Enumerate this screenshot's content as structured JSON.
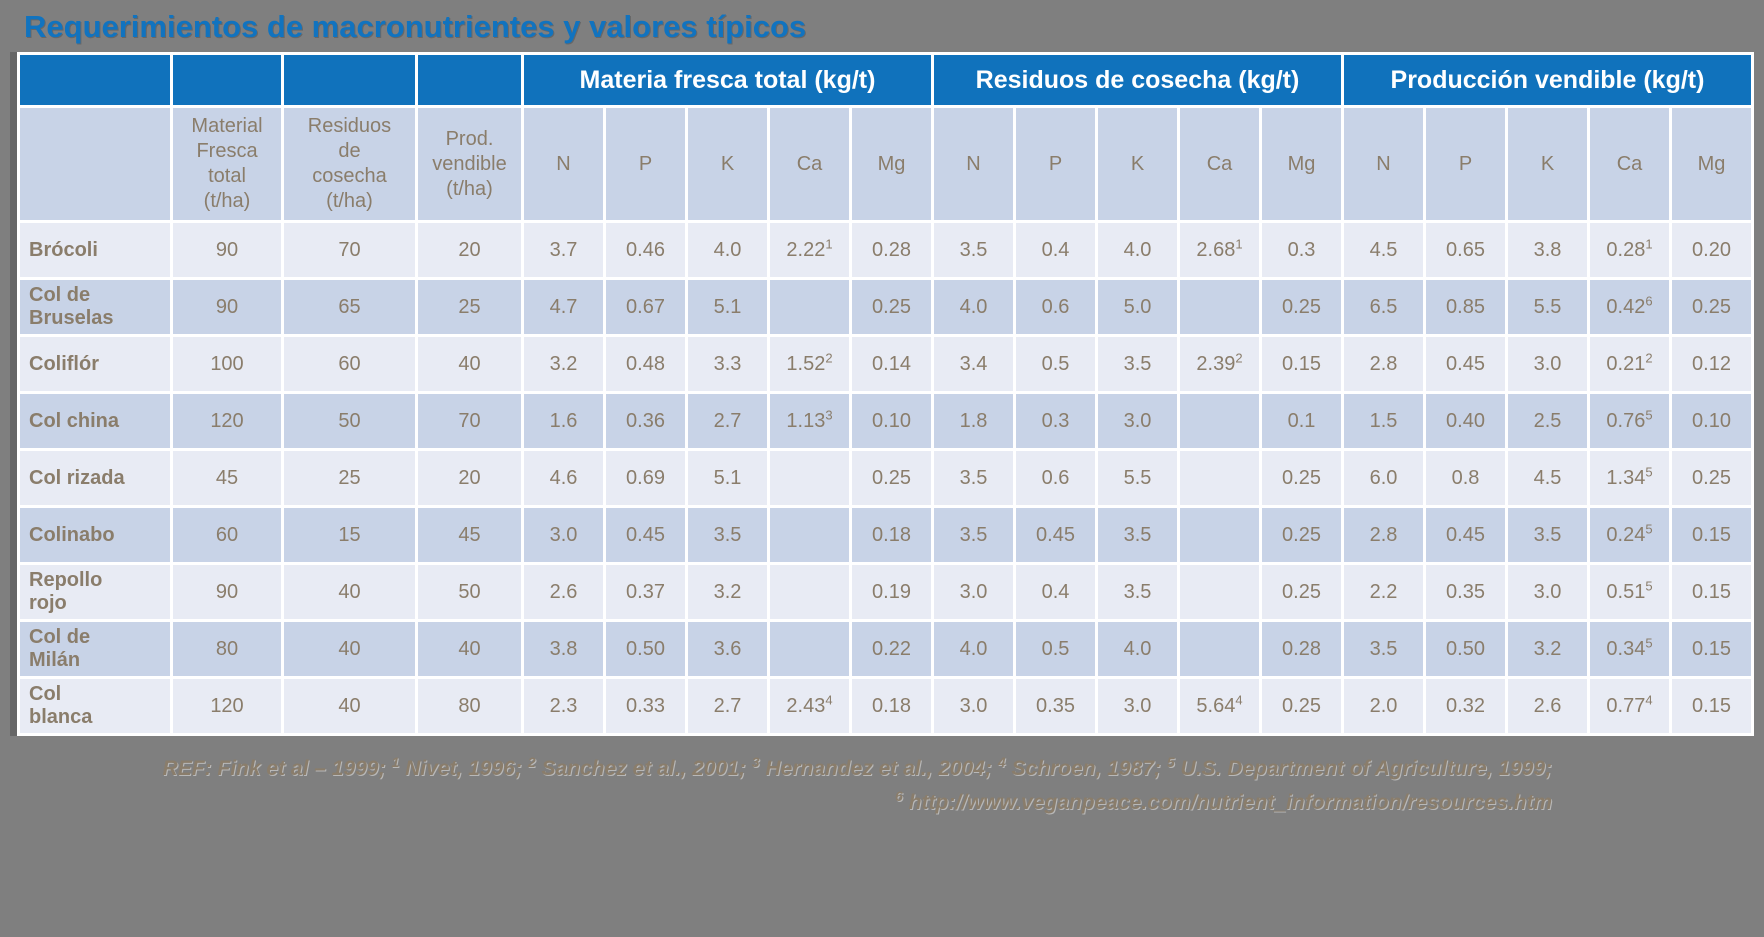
{
  "page": {
    "title": "Requerimientos de macronutrientes y valores típicos",
    "background_color": "#7F7F7F",
    "title_color": "#1173BF"
  },
  "table": {
    "header_groups": [
      "Materia fresca total (kg/t)",
      "Residuos de cosecha (kg/t)",
      "Producción vendible (kg/t)"
    ],
    "subheaders": [
      "Material\nFresca\ntotal\n(t/ha)",
      "Residuos\nde\ncosecha\n(t/ha)",
      "Prod.\nvendible\n(t/ha)"
    ],
    "nutrients": [
      "N",
      "P",
      "K",
      "Ca",
      "Mg"
    ],
    "rows": [
      {
        "name": "Brócoli",
        "values": [
          "90",
          "70",
          "20",
          "3.7",
          "0.46",
          "4.0",
          "2.22^1",
          "0.28",
          "3.5",
          "0.4",
          "4.0",
          "2.68^1",
          "0.3",
          "4.5",
          "0.65",
          "3.8",
          "0.28^1",
          "0.20"
        ]
      },
      {
        "name": "Col de Bruselas",
        "values": [
          "90",
          "65",
          "25",
          "4.7",
          "0.67",
          "5.1",
          "",
          "0.25",
          "4.0",
          "0.6",
          "5.0",
          "",
          "0.25",
          "6.5",
          "0.85",
          "5.5",
          "0.42^6",
          "0.25"
        ]
      },
      {
        "name": "Coliflór",
        "values": [
          "100",
          "60",
          "40",
          "3.2",
          "0.48",
          "3.3",
          "1.52^2",
          "0.14",
          "3.4",
          "0.5",
          "3.5",
          "2.39^2",
          "0.15",
          "2.8",
          "0.45",
          "3.0",
          "0.21^2",
          "0.12"
        ]
      },
      {
        "name": "Col china",
        "values": [
          "120",
          "50",
          "70",
          "1.6",
          "0.36",
          "2.7",
          "1.13^3",
          "0.10",
          "1.8",
          "0.3",
          "3.0",
          "",
          "0.1",
          "1.5",
          "0.40",
          "2.5",
          "0.76^5",
          "0.10"
        ]
      },
      {
        "name": "Col rizada",
        "values": [
          "45",
          "25",
          "20",
          "4.6",
          "0.69",
          "5.1",
          "",
          "0.25",
          "3.5",
          "0.6",
          "5.5",
          "",
          "0.25",
          "6.0",
          "0.8",
          "4.5",
          "1.34^5",
          "0.25"
        ]
      },
      {
        "name": "Colinabo",
        "values": [
          "60",
          "15",
          "45",
          "3.0",
          "0.45",
          "3.5",
          "",
          "0.18",
          "3.5",
          "0.45",
          "3.5",
          "",
          "0.25",
          "2.8",
          "0.45",
          "3.5",
          "0.24^5",
          "0.15"
        ]
      },
      {
        "name": "Repollo rojo",
        "values": [
          "90",
          "40",
          "50",
          "2.6",
          "0.37",
          "3.2",
          "",
          "0.19",
          "3.0",
          "0.4",
          "3.5",
          "",
          "0.25",
          "2.2",
          "0.35",
          "3.0",
          "0.51^5",
          "0.15"
        ]
      },
      {
        "name": "Col de Milán",
        "values": [
          "80",
          "40",
          "40",
          "3.8",
          "0.50",
          "3.6",
          "",
          "0.22",
          "4.0",
          "0.5",
          "4.0",
          "",
          "0.28",
          "3.5",
          "0.50",
          "3.2",
          "0.34^5",
          "0.15"
        ]
      },
      {
        "name": "Col blanca",
        "values": [
          "120",
          "40",
          "80",
          "2.3",
          "0.33",
          "2.7",
          "2.43^4",
          "0.18",
          "3.0",
          "0.35",
          "3.0",
          "5.64^4",
          "0.25",
          "2.0",
          "0.32",
          "2.6",
          "0.77^4",
          "0.15"
        ]
      }
    ],
    "colors": {
      "header_blue": "#1072BC",
      "row_light": "#E8EBF4",
      "row_dark": "#C8D3E7",
      "text_brown": "#8A7D6B"
    }
  },
  "footer": {
    "line1": [
      {
        "sup": "",
        "text": "REF: Fink et al – 1999;"
      },
      {
        "sup": "1",
        "text": "Nivet, 1996;"
      },
      {
        "sup": "2",
        "text": "Sanchez et al., 2001;"
      },
      {
        "sup": "3",
        "text": "Hernandez et al., 2004;"
      },
      {
        "sup": "4",
        "text": "Schroen, 1987;"
      },
      {
        "sup": "5",
        "text": "U.S. Department of Agriculture, 1999;"
      }
    ],
    "line2": [
      {
        "sup": "6",
        "text": "http://www.veganpeace.com/nutrient_information/resources.htm"
      }
    ]
  }
}
